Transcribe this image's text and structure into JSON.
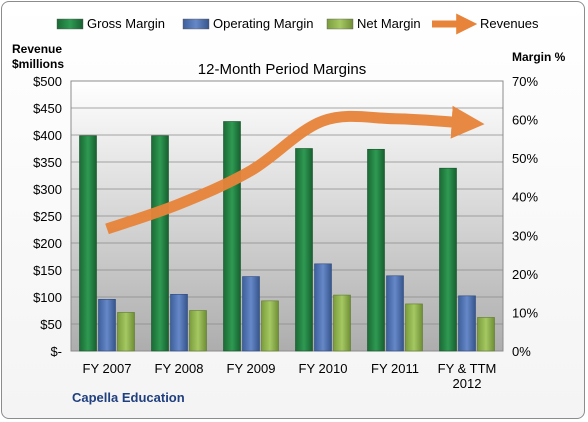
{
  "chart_data": {
    "type": "bar",
    "title": "12-Month Period Margins",
    "categories": [
      "FY 2007",
      "FY 2008",
      "FY 2009",
      "FY 2010",
      "FY 2011",
      "FY & TTM 2012"
    ],
    "y_left_label": [
      "Revenue",
      "$millions"
    ],
    "y_right_label": "Margin %",
    "y_left_ticks": [
      "$-",
      "$50",
      "$100",
      "$150",
      "$200",
      "$250",
      "$300",
      "$350",
      "$400",
      "$450",
      "$500"
    ],
    "y_right_ticks": [
      "0%",
      "10%",
      "20%",
      "30%",
      "40%",
      "50%",
      "60%",
      "70%"
    ],
    "y_left_range": [
      0,
      500
    ],
    "y_right_range": [
      0,
      70
    ],
    "series": [
      {
        "name": "Gross Margin",
        "axis": "right",
        "kind": "bar",
        "color": "#1e7a3c",
        "values": [
          55.8,
          55.8,
          59.5,
          52.5,
          52.3,
          47.4
        ]
      },
      {
        "name": "Operating Margin",
        "axis": "right",
        "kind": "bar",
        "color": "#4a6fb0",
        "values": [
          13.4,
          14.7,
          19.3,
          22.6,
          19.5,
          14.3
        ]
      },
      {
        "name": "Net Margin",
        "axis": "right",
        "kind": "bar",
        "color": "#8db04a",
        "values": [
          10.0,
          10.5,
          13.0,
          14.5,
          12.2,
          8.7
        ]
      },
      {
        "name": "Revenues",
        "axis": "left",
        "kind": "line",
        "color": "#e8843a",
        "values": [
          226,
          272,
          334,
          426,
          430,
          422
        ]
      }
    ],
    "grid": true,
    "legend_position": "top"
  },
  "company": "Capella Education"
}
